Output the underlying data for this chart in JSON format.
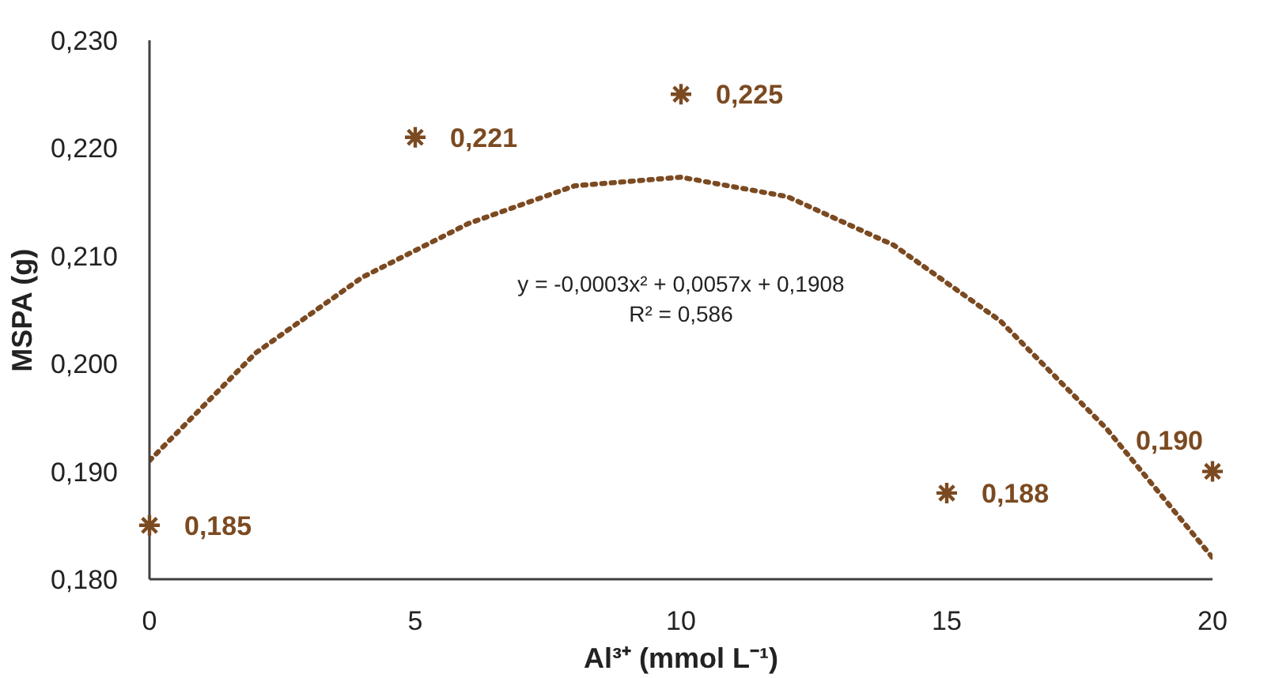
{
  "chart_data": {
    "type": "scatter",
    "xlabel": "Al³⁺ (mmol L⁻¹)",
    "ylabel": "MSPA (g)",
    "x": [
      0,
      5,
      10,
      15,
      20
    ],
    "series": [
      {
        "color": "#7b4a21",
        "marker": "cross",
        "values": [
          0.185,
          0.221,
          0.225,
          0.188,
          0.19
        ],
        "value_labels": [
          "0,185",
          "0,221",
          "0,225",
          "0,188",
          "0,190"
        ]
      },
      {
        "type": "line",
        "color": "#7b4a21",
        "line_style": "dotted",
        "x": [
          0,
          2,
          4,
          6,
          8,
          10,
          12,
          14,
          16,
          18,
          20
        ],
        "values": [
          0.191,
          0.201,
          0.208,
          0.213,
          0.2165,
          0.2173,
          0.2155,
          0.211,
          0.204,
          0.194,
          0.182
        ]
      }
    ],
    "annotations": [
      "y = -0,0003x² + 0,0057x + 0,1908",
      "R² = 0,586"
    ],
    "xlim": [
      0,
      20
    ],
    "ylim": [
      0.18,
      0.23
    ],
    "xticks": [
      0,
      5,
      10,
      15,
      20
    ],
    "yticks": [
      {
        "value": 0.18,
        "label": "0,180"
      },
      {
        "value": 0.19,
        "label": "0,190"
      },
      {
        "value": 0.2,
        "label": "0,200"
      },
      {
        "value": 0.21,
        "label": "0,210"
      },
      {
        "value": 0.22,
        "label": "0,220"
      },
      {
        "value": 0.23,
        "label": "0,230"
      }
    ],
    "grid": false
  }
}
